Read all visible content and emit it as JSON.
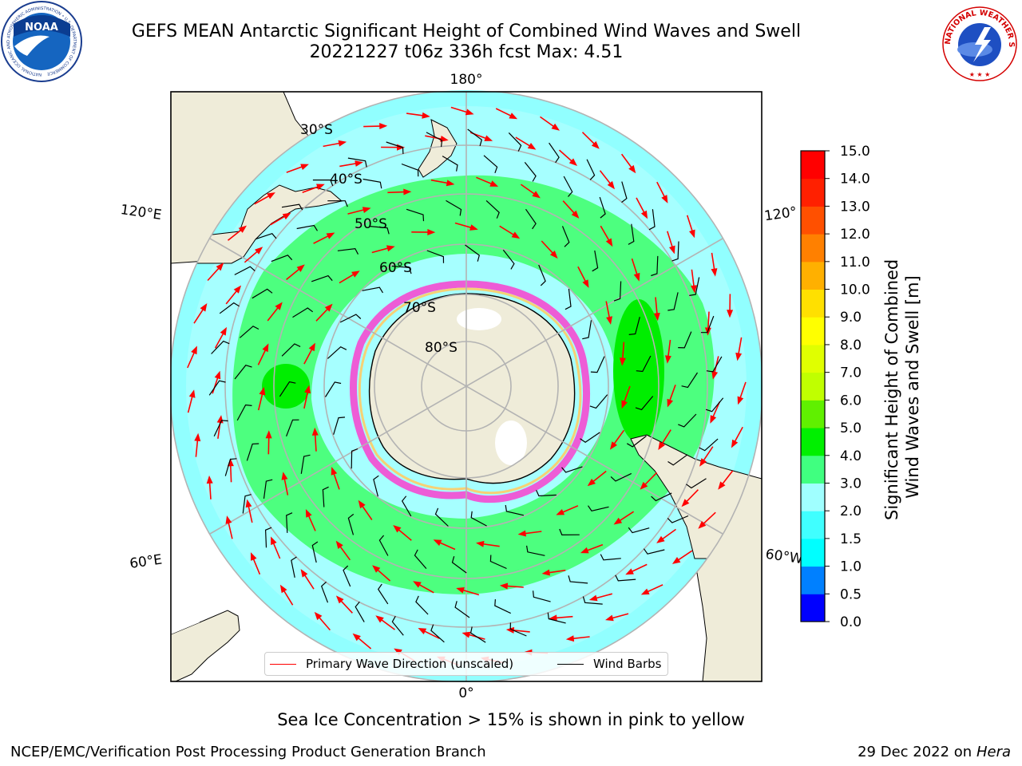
{
  "header": {
    "title_line1": "GEFS MEAN Antarctic Significant Height of Combined Wind Waves and Swell",
    "title_line2": "20221227 t06z 336h fcst   Max: 4.51"
  },
  "map": {
    "projection": "south-polar-stereographic",
    "colors": {
      "land": "#efecd9",
      "ocean_low": "#7fffff",
      "ocean_mid": "#a6ffff",
      "band": "#4dff7f",
      "band_high": "#00ee00",
      "gridline": "#b3b3b3",
      "arrow": "#ff0000",
      "barb": "#000000"
    },
    "lat_labels": [
      "30°S",
      "40°S",
      "50°S",
      "60°S",
      "70°S",
      "80°S"
    ],
    "lon_labels": {
      "top": "180°",
      "bottom": "0°",
      "left_upper": "120°E",
      "left_lower": "60°E",
      "right_upper": "120°",
      "right_lower": "60°W"
    }
  },
  "legend": {
    "items": [
      {
        "label": "Primary Wave Direction (unscaled)",
        "color": "#ff0000"
      },
      {
        "label": "Wind Barbs",
        "color": "#000000"
      }
    ]
  },
  "colorbar": {
    "title_line1": "Significant Height of Combined",
    "title_line2": "Wind Waves and Swell [m]",
    "ticks": [
      "0.0",
      "0.5",
      "1.0",
      "1.5",
      "2.0",
      "3.0",
      "4.0",
      "5.0",
      "6.0",
      "7.0",
      "8.0",
      "9.0",
      "10.0",
      "11.0",
      "12.0",
      "13.0",
      "14.0",
      "15.0"
    ],
    "colors": [
      "#0000ff",
      "#0080ff",
      "#00ffff",
      "#40ffff",
      "#a0ffff",
      "#40ff80",
      "#00f000",
      "#60f000",
      "#c0ff00",
      "#e0ff00",
      "#ffff00",
      "#ffe000",
      "#ffb000",
      "#ff8000",
      "#ff5000",
      "#ff2000",
      "#ff0000"
    ]
  },
  "footnote": "Sea Ice Concentration > 15% is shown in pink to yellow",
  "credits": {
    "left": "NCEP/EMC/Verification Post Processing Product Generation Branch",
    "right_date": "29 Dec 2022 on",
    "right_host": "Hera"
  },
  "logos": {
    "noaa": "NOAA",
    "noaa_ring": "NATIONAL OCEANIC AND ATMOSPHERIC ADMINISTRATION • U.S. DEPARTMENT OF COMMERCE",
    "nws_ring": "NATIONAL WEATHER SERVICE"
  }
}
